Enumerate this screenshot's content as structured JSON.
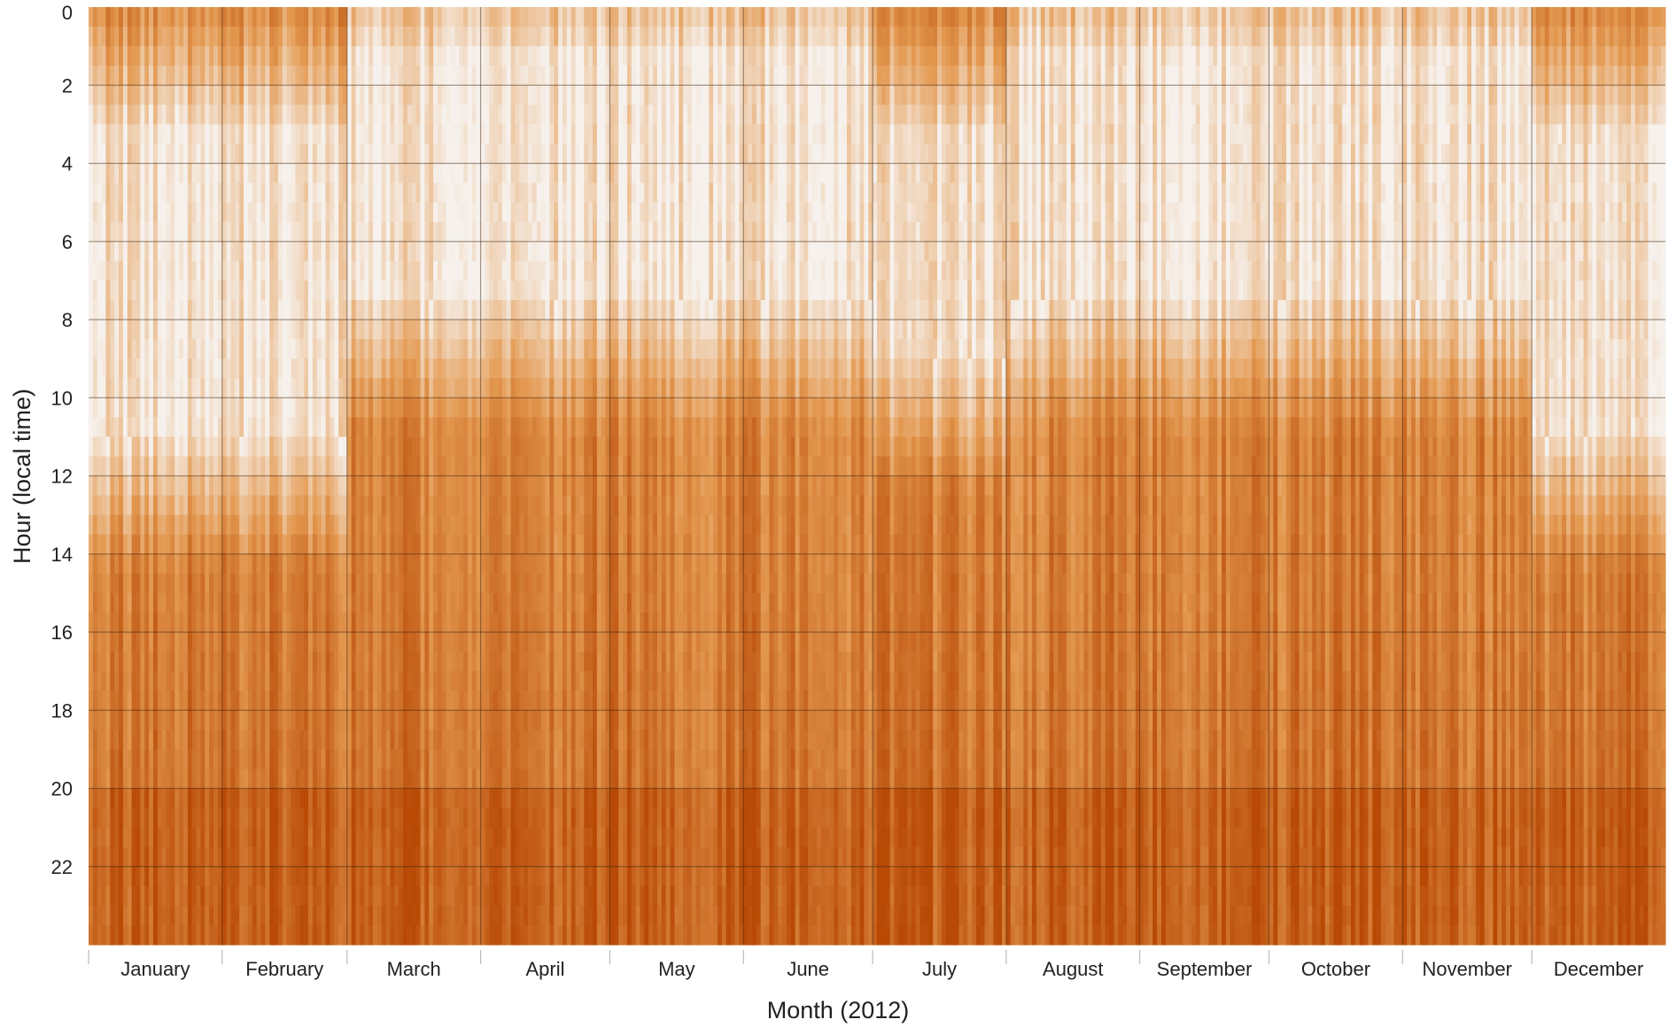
{
  "chart_data": {
    "type": "heatmap",
    "title": "",
    "xlabel": "Month (2012)",
    "ylabel": "Hour (local time)",
    "x_categories": [
      "January",
      "February",
      "March",
      "April",
      "May",
      "June",
      "July",
      "August",
      "September",
      "October",
      "November",
      "December"
    ],
    "month_days": [
      31,
      29,
      31,
      30,
      31,
      30,
      31,
      31,
      30,
      31,
      30,
      31
    ],
    "y_ticks": [
      "0",
      "2",
      "4",
      "6",
      "8",
      "10",
      "12",
      "14",
      "16",
      "18",
      "20",
      "22"
    ],
    "ylim": [
      0,
      24
    ],
    "y_inverted": true,
    "grid": true,
    "colormap": {
      "low": "#f6f1ec",
      "mid": "#e49a52",
      "high": "#b84a06"
    },
    "low_value_window_by_month": [
      {
        "month": "January",
        "start_hour": 3.0,
        "end_hour": 10.5
      },
      {
        "month": "February",
        "start_hour": 3.0,
        "end_hour": 10.5
      },
      {
        "month": "March",
        "start_hour": 1.0,
        "end_hour": 7.0
      },
      {
        "month": "April",
        "start_hour": 1.0,
        "end_hour": 7.0
      },
      {
        "month": "May",
        "start_hour": 1.0,
        "end_hour": 7.0
      },
      {
        "month": "June",
        "start_hour": 1.0,
        "end_hour": 7.0
      },
      {
        "month": "July",
        "start_hour": 3.0,
        "end_hour": 8.5
      },
      {
        "month": "August",
        "start_hour": 1.0,
        "end_hour": 7.0
      },
      {
        "month": "September",
        "start_hour": 1.0,
        "end_hour": 7.0
      },
      {
        "month": "October",
        "start_hour": 1.0,
        "end_hour": 7.0
      },
      {
        "month": "November",
        "start_hour": 1.0,
        "end_hour": 7.0
      },
      {
        "month": "December",
        "start_hour": 3.0,
        "end_hour": 10.5
      }
    ],
    "high_value_band": {
      "start_hour": 20,
      "end_hour": 24
    }
  }
}
